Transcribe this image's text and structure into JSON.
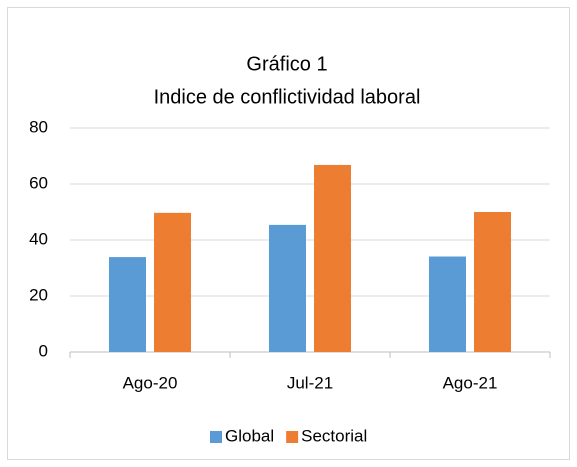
{
  "chart_data": {
    "type": "bar",
    "title": "Gráfico 1",
    "subtitle": "Indice de conflictividad laboral",
    "categories": [
      "Ago-20",
      "Jul-21",
      "Ago-21"
    ],
    "series": [
      {
        "name": "Global",
        "color": "#5b9bd5",
        "values": [
          33.9,
          45.4,
          34.1
        ]
      },
      {
        "name": "Sectorial",
        "color": "#ed7d31",
        "values": [
          49.7,
          66.8,
          50.0
        ]
      }
    ],
    "ylim": [
      0,
      80
    ],
    "yticks": [
      0,
      20,
      40,
      60,
      80
    ],
    "grid": true,
    "legend": "bottom"
  }
}
